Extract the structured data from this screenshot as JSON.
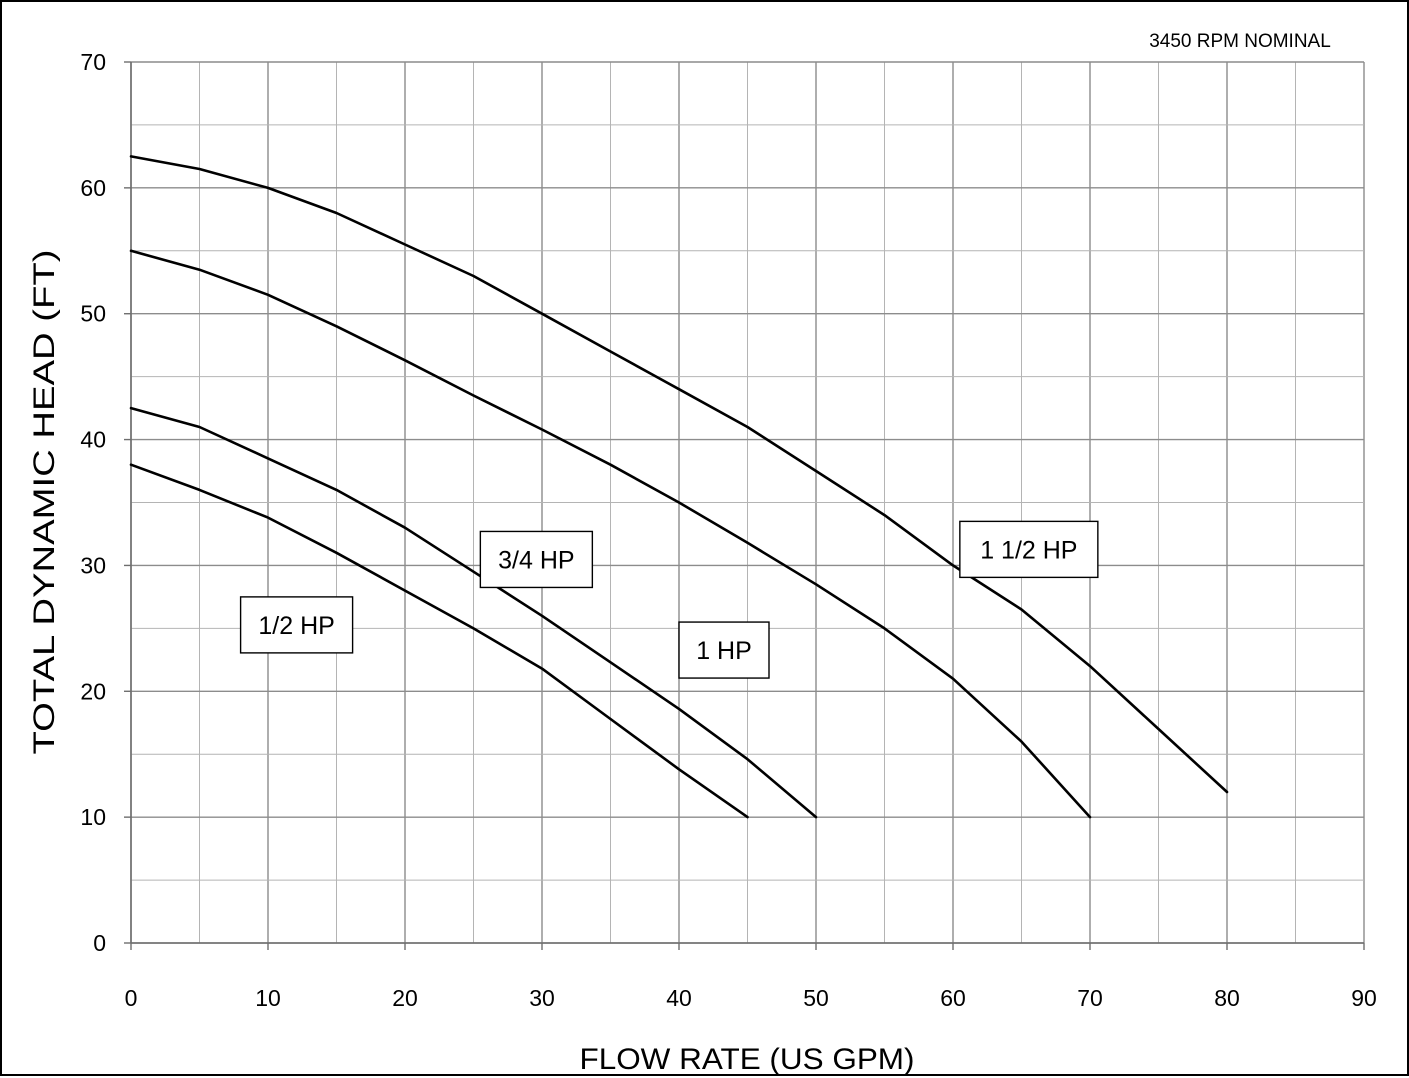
{
  "chart_data": {
    "type": "line",
    "title": "",
    "annotation": "3450 RPM NOMINAL",
    "xlabel": "FLOW RATE  (US GPM)",
    "ylabel": "TOTAL DYNAMIC HEAD  (FT)",
    "xlim": [
      0,
      90
    ],
    "ylim": [
      0,
      70
    ],
    "xticks": [
      0,
      10,
      20,
      30,
      40,
      50,
      60,
      70,
      80,
      90
    ],
    "yticks": [
      0,
      10,
      20,
      30,
      40,
      50,
      60,
      70
    ],
    "grid": true,
    "minor_grid_step_x": 5,
    "minor_grid_step_y": 5,
    "line_color": "#000000",
    "series": [
      {
        "name": "1/2 HP",
        "x": [
          0,
          5,
          10,
          15,
          20,
          25,
          30,
          35,
          40,
          45
        ],
        "y": [
          38,
          36,
          33.8,
          31,
          28,
          25,
          21.8,
          17.8,
          13.8,
          10
        ]
      },
      {
        "name": "3/4 HP",
        "x": [
          0,
          5,
          10,
          15,
          20,
          25,
          30,
          35,
          40,
          45,
          50
        ],
        "y": [
          42.5,
          41,
          38.5,
          36,
          33,
          29.5,
          26,
          22.3,
          18.6,
          14.6,
          10
        ]
      },
      {
        "name": "1 HP",
        "x": [
          0,
          5,
          10,
          15,
          20,
          25,
          30,
          35,
          40,
          45,
          50,
          55,
          60,
          65,
          70
        ],
        "y": [
          55,
          53.5,
          51.5,
          49,
          46.3,
          43.5,
          40.8,
          38,
          35,
          31.8,
          28.5,
          25,
          21,
          16,
          10
        ]
      },
      {
        "name": "1 1/2 HP",
        "x": [
          0,
          5,
          10,
          15,
          20,
          25,
          30,
          35,
          40,
          45,
          50,
          55,
          60,
          65,
          70,
          75,
          80
        ],
        "y": [
          62.5,
          61.5,
          60,
          58,
          55.5,
          53,
          50,
          47,
          44,
          41,
          37.5,
          34,
          30,
          26.5,
          22,
          17,
          12
        ]
      }
    ],
    "labels": [
      {
        "text": "1/2 HP",
        "series": "1/2 HP"
      },
      {
        "text": "3/4 HP",
        "series": "3/4 HP"
      },
      {
        "text": "1 HP",
        "series": "1 HP"
      },
      {
        "text": "1 1/2 HP",
        "series": "1 1/2 HP"
      }
    ]
  }
}
